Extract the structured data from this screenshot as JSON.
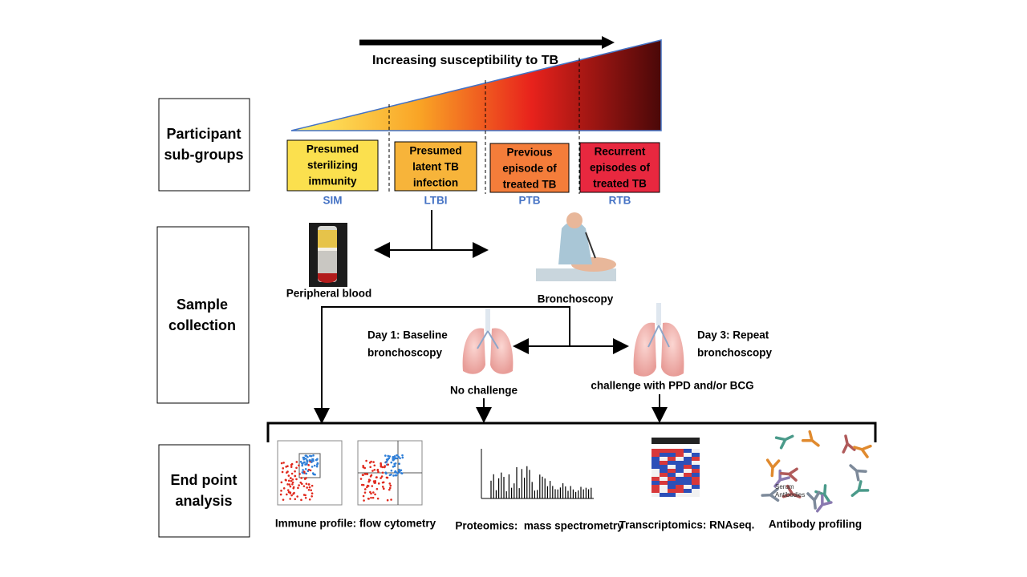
{
  "header": {
    "arrow_label": "Increasing susceptibility to TB"
  },
  "rows": [
    {
      "label_lines": [
        "Participant",
        "sub-groups"
      ]
    },
    {
      "label_lines": [
        "Sample",
        "collection"
      ]
    },
    {
      "label_lines": [
        "End point",
        "analysis"
      ]
    }
  ],
  "groups": [
    {
      "label_lines": [
        "Presumed",
        "sterilizing",
        "immunity"
      ],
      "abbr": "SIM"
    },
    {
      "label_lines": [
        "Presumed",
        "latent TB",
        "infection"
      ],
      "abbr": "LTBI"
    },
    {
      "label_lines": [
        "Previous",
        "episode of",
        "treated TB"
      ],
      "abbr": "PTB"
    },
    {
      "label_lines": [
        "Recurrent",
        "episodes of",
        "treated TB"
      ],
      "abbr": "RTB"
    }
  ],
  "samples": {
    "blood": "Peripheral blood",
    "bronchoscopy": "Bronchoscopy",
    "day1_lines": [
      "Day 1: Baseline",
      "bronchoscopy"
    ],
    "day3_lines": [
      "Day 3: Repeat",
      "bronchoscopy"
    ],
    "no_challenge": "No challenge",
    "challenge": "challenge with PPD and/or BCG"
  },
  "endpoints": [
    {
      "label": "Immune profile: flow cytometry"
    },
    {
      "label": "Proteomics:  mass spectrometry"
    },
    {
      "label": "Transcriptomics: RNAseq."
    },
    {
      "label": "Antibody profiling",
      "image_text": [
        "Serum",
        "Antibodies"
      ]
    }
  ]
}
